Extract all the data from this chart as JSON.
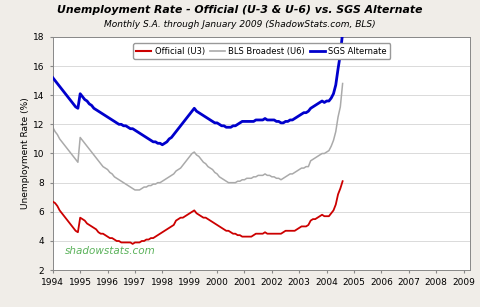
{
  "title": "Unemployment Rate - Official (U-3 & U-6) vs. SGS Alternate",
  "subtitle": "Monthly S.A. through January 2009 (ShadowStats.com, BLS)",
  "ylabel": "Unemployment Rate (%)",
  "watermark": "shadowstats.com",
  "background_color": "#f0ede8",
  "plot_background": "#ffffff",
  "xlim_start": 1994.0,
  "xlim_end": 2009.25,
  "ylim": [
    2,
    18
  ],
  "yticks": [
    2,
    4,
    6,
    8,
    10,
    12,
    14,
    16,
    18
  ],
  "xticks": [
    1994,
    1995,
    1996,
    1997,
    1998,
    1999,
    2000,
    2001,
    2002,
    2003,
    2004,
    2005,
    2006,
    2007,
    2008,
    2009
  ],
  "legend_labels": [
    "Official (U3)",
    "BLS Broadest (U6)",
    "SGS Alternate"
  ],
  "legend_colors": [
    "#cc0000",
    "#aaaaaa",
    "#0000cc"
  ],
  "u3": [
    6.7,
    6.6,
    6.4,
    6.1,
    5.9,
    5.7,
    5.5,
    5.3,
    5.1,
    4.9,
    4.7,
    4.6,
    5.6,
    5.5,
    5.4,
    5.2,
    5.1,
    5.0,
    4.9,
    4.8,
    4.6,
    4.5,
    4.5,
    4.4,
    4.3,
    4.2,
    4.2,
    4.1,
    4.0,
    4.0,
    3.9,
    3.9,
    3.9,
    3.9,
    3.9,
    3.8,
    3.9,
    3.9,
    3.9,
    4.0,
    4.0,
    4.1,
    4.1,
    4.2,
    4.2,
    4.3,
    4.4,
    4.5,
    4.6,
    4.7,
    4.8,
    4.9,
    5.0,
    5.1,
    5.4,
    5.5,
    5.6,
    5.6,
    5.7,
    5.8,
    5.9,
    6.0,
    6.1,
    5.9,
    5.8,
    5.7,
    5.6,
    5.6,
    5.5,
    5.4,
    5.3,
    5.2,
    5.1,
    5.0,
    4.9,
    4.8,
    4.7,
    4.7,
    4.6,
    4.5,
    4.5,
    4.4,
    4.4,
    4.3,
    4.3,
    4.3,
    4.3,
    4.3,
    4.4,
    4.5,
    4.5,
    4.5,
    4.5,
    4.6,
    4.5,
    4.5,
    4.5,
    4.5,
    4.5,
    4.5,
    4.5,
    4.6,
    4.7,
    4.7,
    4.7,
    4.7,
    4.7,
    4.8,
    4.9,
    5.0,
    5.0,
    5.0,
    5.1,
    5.4,
    5.5,
    5.5,
    5.6,
    5.7,
    5.8,
    5.7,
    5.7,
    5.7,
    5.9,
    6.1,
    6.5,
    7.2,
    7.6,
    8.1
  ],
  "u6": [
    11.8,
    11.5,
    11.3,
    11.0,
    10.8,
    10.6,
    10.4,
    10.2,
    10.0,
    9.8,
    9.6,
    9.4,
    11.1,
    10.9,
    10.7,
    10.5,
    10.3,
    10.1,
    9.9,
    9.7,
    9.5,
    9.3,
    9.1,
    9.0,
    8.9,
    8.7,
    8.6,
    8.4,
    8.3,
    8.2,
    8.1,
    8.0,
    7.9,
    7.8,
    7.7,
    7.6,
    7.5,
    7.5,
    7.5,
    7.6,
    7.7,
    7.7,
    7.8,
    7.8,
    7.9,
    7.9,
    8.0,
    8.0,
    8.1,
    8.2,
    8.3,
    8.4,
    8.5,
    8.6,
    8.8,
    8.9,
    9.0,
    9.2,
    9.4,
    9.6,
    9.8,
    10.0,
    10.1,
    9.9,
    9.8,
    9.6,
    9.4,
    9.3,
    9.1,
    9.0,
    8.9,
    8.7,
    8.6,
    8.4,
    8.3,
    8.2,
    8.1,
    8.0,
    8.0,
    8.0,
    8.0,
    8.1,
    8.1,
    8.2,
    8.2,
    8.3,
    8.3,
    8.3,
    8.4,
    8.4,
    8.5,
    8.5,
    8.5,
    8.6,
    8.5,
    8.5,
    8.4,
    8.4,
    8.3,
    8.3,
    8.2,
    8.3,
    8.4,
    8.5,
    8.6,
    8.6,
    8.7,
    8.8,
    8.9,
    9.0,
    9.0,
    9.1,
    9.1,
    9.5,
    9.6,
    9.7,
    9.8,
    9.9,
    10.0,
    10.0,
    10.1,
    10.2,
    10.5,
    10.9,
    11.5,
    12.5,
    13.2,
    14.8
  ],
  "sgs": [
    15.2,
    15.0,
    14.8,
    14.6,
    14.4,
    14.2,
    14.0,
    13.8,
    13.6,
    13.4,
    13.2,
    13.1,
    14.1,
    13.9,
    13.7,
    13.6,
    13.4,
    13.3,
    13.1,
    13.0,
    12.9,
    12.8,
    12.7,
    12.6,
    12.5,
    12.4,
    12.3,
    12.2,
    12.1,
    12.0,
    12.0,
    11.9,
    11.9,
    11.8,
    11.7,
    11.7,
    11.6,
    11.5,
    11.4,
    11.3,
    11.2,
    11.1,
    11.0,
    10.9,
    10.8,
    10.8,
    10.7,
    10.7,
    10.6,
    10.7,
    10.8,
    11.0,
    11.1,
    11.3,
    11.5,
    11.7,
    11.9,
    12.1,
    12.3,
    12.5,
    12.7,
    12.9,
    13.1,
    12.9,
    12.8,
    12.7,
    12.6,
    12.5,
    12.4,
    12.3,
    12.2,
    12.1,
    12.1,
    12.0,
    11.9,
    11.9,
    11.8,
    11.8,
    11.8,
    11.9,
    11.9,
    12.0,
    12.1,
    12.2,
    12.2,
    12.2,
    12.2,
    12.2,
    12.2,
    12.3,
    12.3,
    12.3,
    12.3,
    12.4,
    12.3,
    12.3,
    12.3,
    12.3,
    12.2,
    12.2,
    12.1,
    12.1,
    12.2,
    12.2,
    12.3,
    12.3,
    12.4,
    12.5,
    12.6,
    12.7,
    12.8,
    12.8,
    12.9,
    13.1,
    13.2,
    13.3,
    13.4,
    13.5,
    13.6,
    13.5,
    13.6,
    13.6,
    13.8,
    14.1,
    14.7,
    15.8,
    16.8,
    18.3
  ]
}
